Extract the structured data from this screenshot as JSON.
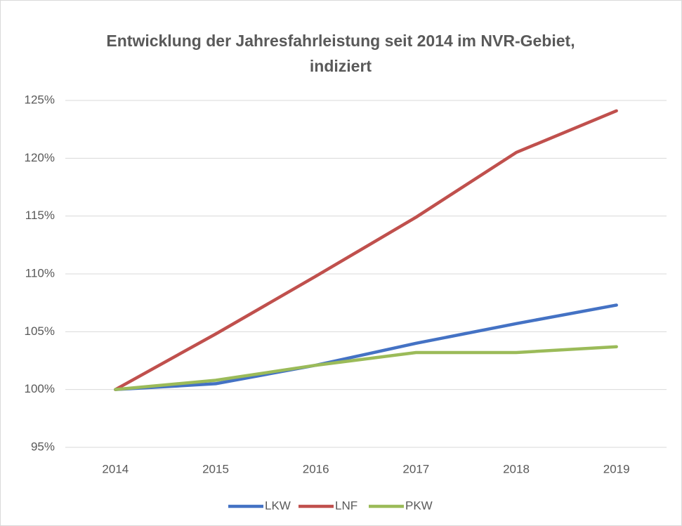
{
  "chart_data": {
    "type": "line",
    "title": "Entwicklung der Jahresfahrleistung seit 2014 im NVR-Gebiet, indiziert",
    "categories": [
      "2014",
      "2015",
      "2016",
      "2017",
      "2018",
      "2019"
    ],
    "series": [
      {
        "name": "LKW",
        "color": "#4472c4",
        "values": [
          100,
          100.5,
          102.1,
          104.0,
          105.7,
          107.3
        ]
      },
      {
        "name": "LNF",
        "color": "#c0504d",
        "values": [
          100,
          104.8,
          109.8,
          114.9,
          120.5,
          124.1
        ]
      },
      {
        "name": "PKW",
        "color": "#9bbb59",
        "values": [
          100,
          100.8,
          102.1,
          103.2,
          103.2,
          103.7
        ]
      }
    ],
    "ylim": [
      95,
      125
    ],
    "yticks": [
      {
        "value": 95,
        "label": "95%"
      },
      {
        "value": 100,
        "label": "100%"
      },
      {
        "value": 105,
        "label": "105%"
      },
      {
        "value": 110,
        "label": "110%"
      },
      {
        "value": 115,
        "label": "115%"
      },
      {
        "value": 120,
        "label": "120%"
      },
      {
        "value": 125,
        "label": "125%"
      }
    ],
    "grid": true,
    "legend": "bottom"
  }
}
